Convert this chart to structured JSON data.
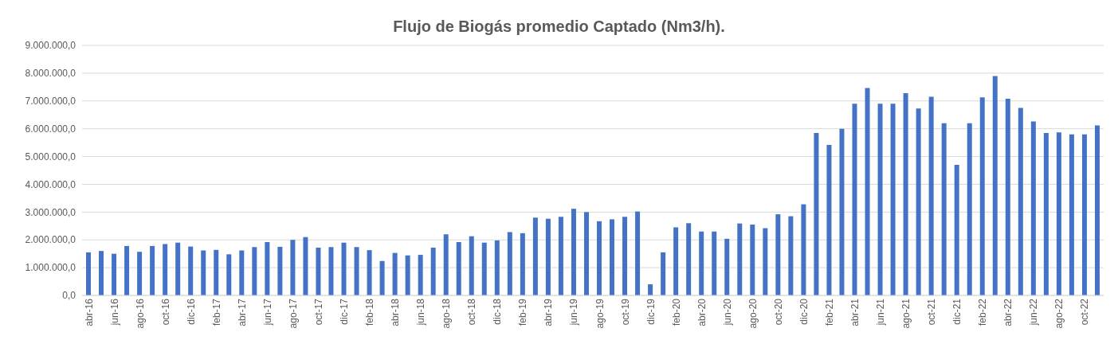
{
  "chart_data": {
    "type": "bar",
    "title": "Flujo de Biogás promedio Captado (Nm3/h).",
    "categories": [
      "abr-16",
      null,
      "jun-16",
      null,
      "ago-16",
      null,
      "oct-16",
      null,
      "dic-16",
      null,
      "feb-17",
      null,
      "abr-17",
      null,
      "jun-17",
      null,
      "ago-17",
      null,
      "oct-17",
      null,
      "dic-17",
      null,
      "feb-18",
      null,
      "abr-18",
      null,
      "jun-18",
      null,
      "ago-18",
      null,
      "oct-18",
      null,
      "dic-18",
      null,
      "feb-19",
      null,
      "abr-19",
      null,
      "jun-19",
      null,
      "ago-19",
      null,
      "oct-19",
      null,
      "dic-19",
      null,
      "feb-20",
      null,
      "abr-20",
      null,
      "jun-20",
      null,
      "ago-20",
      null,
      "oct-20",
      null,
      "dic-20",
      null,
      "feb-21",
      null,
      "abr-21",
      null,
      "jun-21",
      null,
      "ago-21",
      null,
      "oct-21",
      null,
      "dic-21",
      null,
      "feb-22",
      null,
      "abr-22",
      null,
      "jun-22",
      null,
      "ago-22",
      null,
      "oct-22",
      null
    ],
    "values": [
      1550000,
      1600000,
      1500000,
      1780000,
      1570000,
      1780000,
      1850000,
      1900000,
      1760000,
      1620000,
      1640000,
      1480000,
      1620000,
      1740000,
      1920000,
      1750000,
      2000000,
      2100000,
      1720000,
      1740000,
      1900000,
      1740000,
      1630000,
      1240000,
      1530000,
      1440000,
      1460000,
      1720000,
      2200000,
      1920000,
      2130000,
      1900000,
      1980000,
      2280000,
      2240000,
      2800000,
      2760000,
      2830000,
      3120000,
      3000000,
      2670000,
      2740000,
      2830000,
      3020000,
      400000,
      1550000,
      2450000,
      2600000,
      2300000,
      2300000,
      2040000,
      2590000,
      2550000,
      2420000,
      2920000,
      2850000,
      3280000,
      5850000,
      5420000,
      6000000,
      6900000,
      7470000,
      6900000,
      6900000,
      7280000,
      6730000,
      7150000,
      6200000,
      4700000,
      6200000,
      7130000,
      7900000,
      7080000,
      6750000,
      6260000,
      5850000,
      5870000,
      5800000,
      5800000,
      6120000
    ],
    "color": "#4472c4",
    "ylim": [
      0,
      9000000
    ],
    "yticks": [
      {
        "value": 0,
        "label": "0,0"
      },
      {
        "value": 1000000,
        "label": "1.000.000,0"
      },
      {
        "value": 2000000,
        "label": "2.000.000,0"
      },
      {
        "value": 3000000,
        "label": "3.000.000,0"
      },
      {
        "value": 4000000,
        "label": "4.000.000,0"
      },
      {
        "value": 5000000,
        "label": "5.000.000,0"
      },
      {
        "value": 6000000,
        "label": "6.000.000,0"
      },
      {
        "value": 7000000,
        "label": "7.000.000,0"
      },
      {
        "value": 8000000,
        "label": "8.000.000,0"
      },
      {
        "value": 9000000,
        "label": "9.000.000,0"
      }
    ],
    "grid": "y"
  }
}
